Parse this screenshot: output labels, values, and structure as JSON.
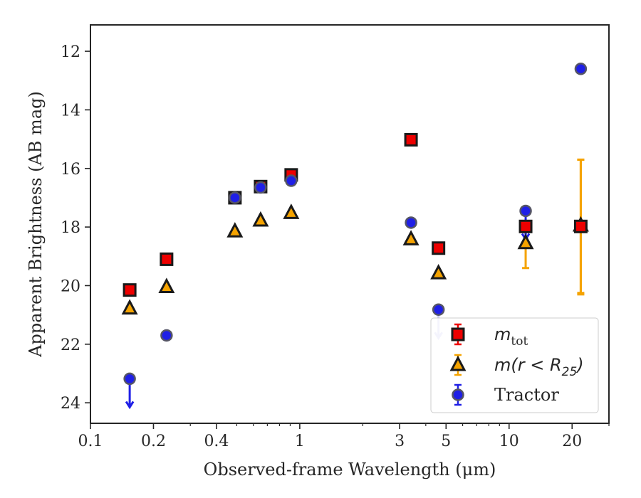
{
  "chart_data": {
    "type": "scatter",
    "xlabel": "Observed-frame Wavelength (μm)",
    "ylabel": "Apparent Brightness (AB mag)",
    "x_scale": "log",
    "y_inverted": true,
    "xlim": [
      0.1,
      30
    ],
    "ylim": [
      24.7,
      11.1
    ],
    "x_ticks": [
      {
        "value": 0.1,
        "label": "0.1"
      },
      {
        "value": 0.2,
        "label": "0.2"
      },
      {
        "value": 0.4,
        "label": "0.4"
      },
      {
        "value": 1,
        "label": "1"
      },
      {
        "value": 3,
        "label": "3"
      },
      {
        "value": 5,
        "label": "5"
      },
      {
        "value": 10,
        "label": "10"
      },
      {
        "value": 20,
        "label": "20"
      }
    ],
    "y_ticks": [
      {
        "value": 12,
        "label": "12"
      },
      {
        "value": 14,
        "label": "14"
      },
      {
        "value": 16,
        "label": "16"
      },
      {
        "value": 18,
        "label": "18"
      },
      {
        "value": 20,
        "label": "20"
      },
      {
        "value": 22,
        "label": "22"
      },
      {
        "value": 24,
        "label": "24"
      }
    ],
    "grid": false,
    "legend_position": "lower-right",
    "series": [
      {
        "name": "m_tot",
        "marker": "square",
        "color": "#ee0000",
        "points": [
          {
            "x": 0.154,
            "y": 20.15
          },
          {
            "x": 0.231,
            "y": 19.1
          },
          {
            "x": 0.49,
            "y": 17.0
          },
          {
            "x": 0.65,
            "y": 16.62
          },
          {
            "x": 0.91,
            "y": 16.22
          },
          {
            "x": 3.4,
            "y": 15.02
          },
          {
            "x": 4.6,
            "y": 18.72
          },
          {
            "x": 12.0,
            "y": 17.98
          },
          {
            "x": 22.0,
            "y": 17.98,
            "yerr": [
              15.7,
              20.3
            ]
          }
        ]
      },
      {
        "name": "m(r < R25)",
        "marker": "triangle",
        "color": "#f5a300",
        "points": [
          {
            "x": 0.154,
            "y": 20.78
          },
          {
            "x": 0.231,
            "y": 20.05
          },
          {
            "x": 0.49,
            "y": 18.15
          },
          {
            "x": 0.65,
            "y": 17.78
          },
          {
            "x": 0.91,
            "y": 17.52
          },
          {
            "x": 3.4,
            "y": 18.42
          },
          {
            "x": 4.6,
            "y": 19.58
          },
          {
            "x": 12.0,
            "y": 18.55,
            "yerr": [
              17.8,
              19.4
            ]
          },
          {
            "x": 22.0,
            "y": 17.95,
            "yerr": [
              15.7,
              20.25
            ]
          }
        ]
      },
      {
        "name": "Tractor",
        "marker": "circle",
        "color": "#1f1fe6",
        "points": [
          {
            "x": 0.154,
            "y": 23.18,
            "upper_limit": true
          },
          {
            "x": 0.231,
            "y": 21.7
          },
          {
            "x": 0.49,
            "y": 17.0
          },
          {
            "x": 0.65,
            "y": 16.65
          },
          {
            "x": 0.91,
            "y": 16.42
          },
          {
            "x": 3.4,
            "y": 17.85
          },
          {
            "x": 4.6,
            "y": 20.82,
            "upper_limit": true
          },
          {
            "x": 12.0,
            "y": 17.45,
            "upper_limit": true
          },
          {
            "x": 22.0,
            "y": 12.6
          }
        ]
      }
    ],
    "legend": [
      {
        "series": 0,
        "label_main": "m",
        "label_sub": "tot"
      },
      {
        "series": 1,
        "label_main": "m(r < R",
        "label_sub": "25",
        "label_tail": ")"
      },
      {
        "series": 2,
        "label_main": "Tractor"
      }
    ]
  }
}
